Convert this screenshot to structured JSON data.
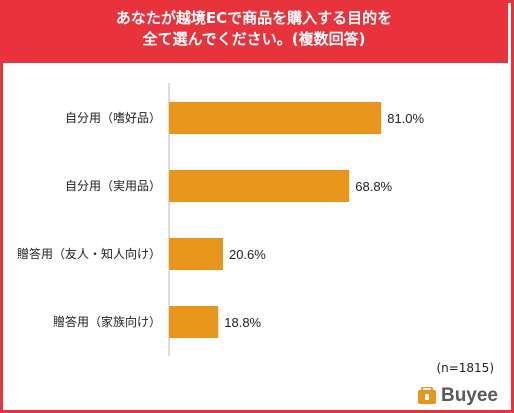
{
  "chart_data": {
    "type": "bar",
    "orientation": "horizontal",
    "title_lines": [
      "あなたが越境ECで商品を購入する目的を",
      "全て選んでください。(複数回答)"
    ],
    "categories": [
      "自分用（嗜好品）",
      "自分用（実用品）",
      "贈答用（友人・知人向け）",
      "贈答用（家族向け）"
    ],
    "values": [
      81.0,
      68.8,
      20.6,
      18.8
    ],
    "value_labels": [
      "81.0%",
      "68.8%",
      "20.6%",
      "18.8%"
    ],
    "unit": "%",
    "xlim": [
      0,
      100
    ],
    "grid": false,
    "legend": "none",
    "bar_color": "#e8951c",
    "note": "(n=1815)"
  },
  "brand": {
    "name": "Buyee",
    "color": "#e8951c"
  },
  "colors": {
    "header": "#e8333c",
    "bar": "#e8951c"
  }
}
